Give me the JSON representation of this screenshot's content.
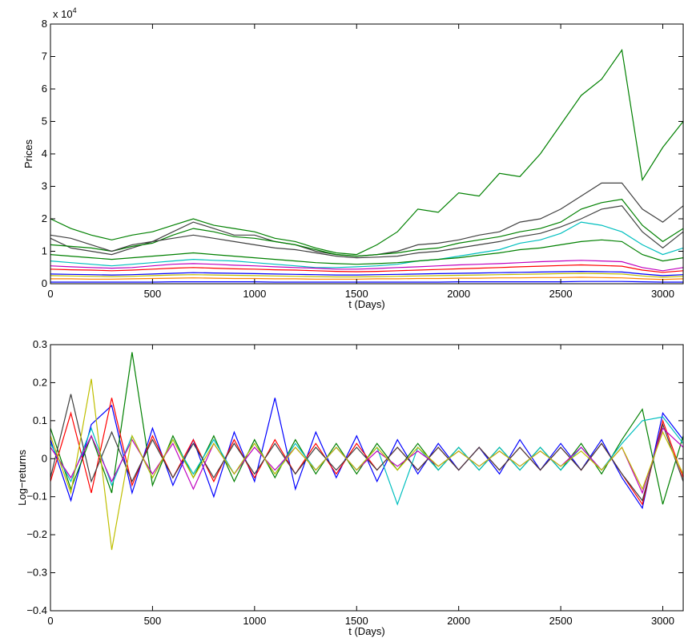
{
  "chart_data": [
    {
      "type": "line",
      "title": "",
      "xlabel": "t (Days)",
      "ylabel": "Prices",
      "exponent_label_base": "x 10",
      "exponent_label_power": "4",
      "xlim": [
        0,
        3100
      ],
      "ylim": [
        0,
        8
      ],
      "x_ticks": [
        0,
        500,
        1000,
        1500,
        2000,
        2500,
        3000
      ],
      "x_tick_labels": [
        "0",
        "500",
        "1000",
        "1500",
        "2000",
        "2500",
        "3000"
      ],
      "y_ticks": [
        0,
        1,
        2,
        3,
        4,
        5,
        6,
        7,
        8
      ],
      "y_tick_labels": [
        "0",
        "1",
        "2",
        "3",
        "4",
        "5",
        "6",
        "7",
        "8"
      ],
      "grid": false,
      "legend": "none",
      "x": [
        0,
        100,
        200,
        300,
        400,
        500,
        600,
        700,
        800,
        900,
        1000,
        1100,
        1200,
        1300,
        1400,
        1500,
        1600,
        1700,
        1800,
        1900,
        2000,
        2100,
        2200,
        2300,
        2400,
        2500,
        2600,
        2700,
        2800,
        2900,
        3000,
        3100
      ],
      "series": [
        {
          "color": "#008000",
          "values": [
            2.0,
            1.7,
            1.5,
            1.35,
            1.5,
            1.6,
            1.8,
            2.0,
            1.8,
            1.7,
            1.6,
            1.4,
            1.3,
            1.1,
            0.95,
            0.9,
            1.2,
            1.6,
            2.3,
            2.2,
            2.8,
            2.7,
            3.4,
            3.3,
            4.0,
            4.9,
            5.8,
            6.3,
            7.2,
            3.2,
            4.2,
            5.0
          ]
        },
        {
          "color": "#404040",
          "values": [
            1.4,
            1.1,
            1.0,
            0.9,
            1.1,
            1.3,
            1.6,
            1.9,
            1.7,
            1.5,
            1.5,
            1.3,
            1.2,
            1.0,
            0.9,
            0.85,
            0.9,
            1.0,
            1.2,
            1.25,
            1.35,
            1.5,
            1.6,
            1.9,
            2.0,
            2.3,
            2.7,
            3.1,
            3.1,
            2.3,
            1.9,
            2.4
          ]
        },
        {
          "color": "#008000",
          "values": [
            1.2,
            1.15,
            1.1,
            1.0,
            1.15,
            1.25,
            1.5,
            1.7,
            1.6,
            1.45,
            1.4,
            1.3,
            1.2,
            1.05,
            0.9,
            0.85,
            0.9,
            0.95,
            1.05,
            1.1,
            1.25,
            1.35,
            1.45,
            1.6,
            1.7,
            1.9,
            2.3,
            2.5,
            2.6,
            1.8,
            1.3,
            1.7
          ]
        },
        {
          "color": "#404040",
          "values": [
            1.5,
            1.4,
            1.2,
            1.0,
            1.2,
            1.3,
            1.4,
            1.5,
            1.4,
            1.3,
            1.2,
            1.1,
            1.05,
            0.95,
            0.85,
            0.8,
            0.82,
            0.85,
            0.95,
            1.0,
            1.1,
            1.2,
            1.3,
            1.45,
            1.55,
            1.75,
            2.0,
            2.3,
            2.4,
            1.6,
            1.1,
            1.6
          ]
        },
        {
          "color": "#00BFBF",
          "values": [
            0.7,
            0.65,
            0.6,
            0.55,
            0.6,
            0.65,
            0.7,
            0.75,
            0.72,
            0.7,
            0.65,
            0.6,
            0.55,
            0.5,
            0.5,
            0.52,
            0.55,
            0.6,
            0.7,
            0.75,
            0.85,
            0.95,
            1.05,
            1.25,
            1.35,
            1.55,
            1.9,
            1.8,
            1.6,
            1.2,
            0.9,
            1.1
          ]
        },
        {
          "color": "#008000",
          "values": [
            0.9,
            0.85,
            0.8,
            0.75,
            0.8,
            0.85,
            0.9,
            0.95,
            0.9,
            0.85,
            0.8,
            0.75,
            0.7,
            0.65,
            0.62,
            0.6,
            0.62,
            0.65,
            0.7,
            0.75,
            0.8,
            0.88,
            0.95,
            1.05,
            1.1,
            1.2,
            1.3,
            1.35,
            1.3,
            0.9,
            0.7,
            0.8
          ]
        },
        {
          "color": "#BF00BF",
          "values": [
            0.55,
            0.52,
            0.5,
            0.48,
            0.5,
            0.55,
            0.6,
            0.62,
            0.6,
            0.57,
            0.55,
            0.52,
            0.5,
            0.48,
            0.45,
            0.45,
            0.47,
            0.5,
            0.52,
            0.55,
            0.58,
            0.6,
            0.62,
            0.65,
            0.68,
            0.7,
            0.72,
            0.7,
            0.68,
            0.5,
            0.4,
            0.5
          ]
        },
        {
          "color": "#FF0000",
          "values": [
            0.45,
            0.43,
            0.42,
            0.4,
            0.42,
            0.45,
            0.48,
            0.5,
            0.48,
            0.46,
            0.45,
            0.43,
            0.42,
            0.4,
            0.38,
            0.37,
            0.38,
            0.4,
            0.42,
            0.44,
            0.46,
            0.48,
            0.5,
            0.52,
            0.54,
            0.56,
            0.58,
            0.56,
            0.54,
            0.42,
            0.35,
            0.4
          ]
        },
        {
          "color": "#0000FF",
          "values": [
            0.3,
            0.29,
            0.28,
            0.27,
            0.28,
            0.3,
            0.32,
            0.34,
            0.33,
            0.32,
            0.31,
            0.3,
            0.29,
            0.28,
            0.27,
            0.27,
            0.28,
            0.29,
            0.3,
            0.31,
            0.32,
            0.33,
            0.34,
            0.35,
            0.36,
            0.37,
            0.38,
            0.37,
            0.36,
            0.3,
            0.25,
            0.28
          ]
        },
        {
          "color": "#BFBF00",
          "values": [
            0.25,
            0.24,
            0.23,
            0.22,
            0.23,
            0.25,
            0.27,
            0.28,
            0.27,
            0.26,
            0.25,
            0.24,
            0.23,
            0.22,
            0.21,
            0.21,
            0.22,
            0.23,
            0.24,
            0.25,
            0.26,
            0.27,
            0.28,
            0.29,
            0.3,
            0.31,
            0.32,
            0.31,
            0.3,
            0.24,
            0.2,
            0.23
          ]
        },
        {
          "color": "#FF8000",
          "values": [
            0.15,
            0.15,
            0.14,
            0.14,
            0.15,
            0.16,
            0.17,
            0.18,
            0.17,
            0.16,
            0.16,
            0.15,
            0.15,
            0.14,
            0.14,
            0.14,
            0.15,
            0.15,
            0.16,
            0.16,
            0.17,
            0.17,
            0.18,
            0.18,
            0.19,
            0.19,
            0.2,
            0.19,
            0.18,
            0.15,
            0.13,
            0.15
          ]
        },
        {
          "color": "#0000FF",
          "values": [
            0.05,
            0.05,
            0.05,
            0.05,
            0.05,
            0.05,
            0.06,
            0.06,
            0.06,
            0.06,
            0.06,
            0.05,
            0.05,
            0.05,
            0.05,
            0.05,
            0.05,
            0.05,
            0.05,
            0.05,
            0.06,
            0.06,
            0.06,
            0.06,
            0.06,
            0.06,
            0.07,
            0.07,
            0.07,
            0.06,
            0.05,
            0.05
          ]
        }
      ]
    },
    {
      "type": "line",
      "title": "",
      "xlabel": "t (Days)",
      "ylabel": "Log−returns",
      "xlim": [
        0,
        3100
      ],
      "ylim": [
        -0.4,
        0.3
      ],
      "x_ticks": [
        0,
        500,
        1000,
        1500,
        2000,
        2500,
        3000
      ],
      "x_tick_labels": [
        "0",
        "500",
        "1000",
        "1500",
        "2000",
        "2500",
        "3000"
      ],
      "y_ticks": [
        -0.4,
        -0.3,
        -0.2,
        -0.1,
        0,
        0.1,
        0.2,
        0.3
      ],
      "y_tick_labels": [
        "−0.4",
        "−0.3",
        "−0.2",
        "−0.1",
        "0",
        "0.1",
        "0.2",
        "0.3"
      ],
      "grid": false,
      "legend": "none",
      "x": [
        0,
        100,
        200,
        300,
        400,
        500,
        600,
        700,
        800,
        900,
        1000,
        1100,
        1200,
        1300,
        1400,
        1500,
        1600,
        1700,
        1800,
        1900,
        2000,
        2100,
        2200,
        2300,
        2400,
        2500,
        2600,
        2700,
        2800,
        2900,
        3000,
        3100
      ],
      "series": [
        {
          "color": "#0000FF",
          "values": [
            0.05,
            -0.11,
            0.09,
            0.14,
            -0.09,
            0.08,
            -0.07,
            0.05,
            -0.1,
            0.07,
            -0.06,
            0.16,
            -0.08,
            0.07,
            -0.05,
            0.06,
            -0.06,
            0.05,
            -0.04,
            0.04,
            -0.03,
            0.03,
            -0.04,
            0.05,
            -0.03,
            0.04,
            -0.03,
            0.05,
            -0.05,
            -0.13,
            0.12,
            0.05
          ]
        },
        {
          "color": "#008000",
          "values": [
            0.08,
            -0.08,
            0.06,
            -0.09,
            0.28,
            -0.07,
            0.06,
            -0.05,
            0.06,
            -0.06,
            0.05,
            -0.05,
            0.05,
            -0.04,
            0.04,
            -0.04,
            0.04,
            -0.03,
            0.04,
            -0.03,
            0.03,
            -0.03,
            0.03,
            -0.03,
            0.03,
            -0.03,
            0.04,
            -0.04,
            0.05,
            0.13,
            -0.12,
            0.06
          ]
        },
        {
          "color": "#FF0000",
          "values": [
            -0.06,
            0.12,
            -0.09,
            0.16,
            -0.07,
            0.06,
            -0.05,
            0.05,
            -0.06,
            0.05,
            -0.05,
            0.05,
            -0.04,
            0.04,
            -0.04,
            0.04,
            -0.03,
            0.03,
            -0.03,
            0.03,
            -0.03,
            0.03,
            -0.03,
            0.03,
            -0.03,
            0.03,
            -0.03,
            0.04,
            -0.04,
            -0.12,
            0.1,
            -0.05
          ]
        },
        {
          "color": "#00BFBF",
          "values": [
            0.04,
            -0.06,
            0.08,
            -0.07,
            0.06,
            -0.05,
            0.05,
            -0.04,
            0.05,
            -0.04,
            0.04,
            -0.04,
            0.04,
            -0.03,
            0.03,
            -0.03,
            0.03,
            -0.12,
            0.03,
            -0.03,
            0.03,
            -0.03,
            0.03,
            -0.03,
            0.03,
            -0.03,
            0.03,
            -0.03,
            0.04,
            0.1,
            0.11,
            0.04
          ]
        },
        {
          "color": "#404040",
          "values": [
            -0.05,
            0.17,
            -0.06,
            0.07,
            -0.06,
            0.05,
            -0.05,
            0.04,
            -0.05,
            0.04,
            -0.04,
            0.04,
            -0.04,
            0.03,
            -0.03,
            0.03,
            -0.03,
            0.03,
            -0.03,
            0.03,
            -0.03,
            0.03,
            -0.03,
            0.03,
            -0.03,
            0.03,
            -0.03,
            0.04,
            -0.04,
            -0.11,
            0.09,
            -0.06
          ]
        },
        {
          "color": "#BF00BF",
          "values": [
            0.03,
            -0.05,
            0.06,
            -0.06,
            0.05,
            -0.04,
            0.04,
            -0.08,
            0.04,
            -0.04,
            0.03,
            -0.03,
            0.03,
            -0.03,
            0.03,
            -0.03,
            0.02,
            -0.02,
            0.02,
            -0.02,
            0.02,
            -0.02,
            0.02,
            -0.02,
            0.02,
            -0.02,
            0.03,
            -0.03,
            0.03,
            -0.09,
            0.08,
            0.03
          ]
        },
        {
          "color": "#BFBF00",
          "values": [
            0.06,
            -0.09,
            0.21,
            -0.24,
            0.06,
            -0.05,
            0.05,
            -0.05,
            0.04,
            -0.04,
            0.04,
            -0.04,
            0.03,
            -0.03,
            0.03,
            -0.03,
            0.03,
            -0.03,
            0.03,
            -0.02,
            0.02,
            -0.02,
            0.02,
            -0.02,
            0.02,
            -0.02,
            0.02,
            -0.03,
            0.03,
            -0.08,
            0.07,
            -0.04
          ]
        }
      ]
    }
  ]
}
